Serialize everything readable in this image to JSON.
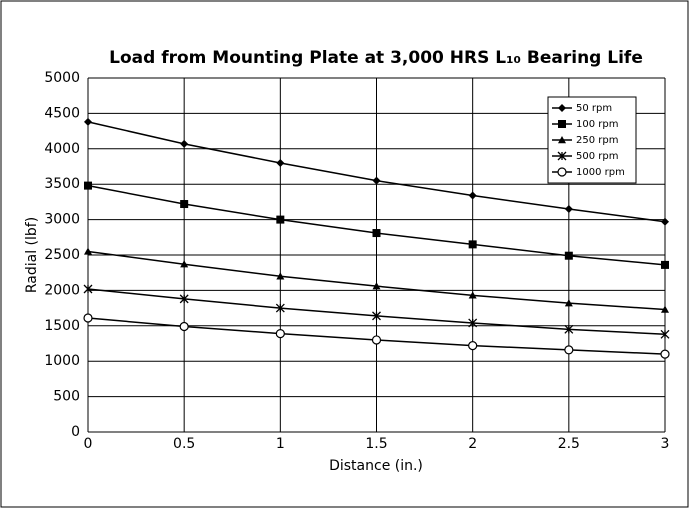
{
  "chart_data": {
    "type": "line",
    "title": "Load from Mounting Plate at 3,000 HRS L₁₀ Bearing Life",
    "x_label": "Distance (in.)",
    "y_label": "Radial (lbf)",
    "x": [
      0,
      0.5,
      1,
      1.5,
      2,
      2.5,
      3
    ],
    "xlim": [
      0,
      3
    ],
    "xticks": [
      0,
      0.5,
      1,
      1.5,
      2,
      2.5,
      3
    ],
    "ylim": [
      0,
      5000
    ],
    "yticks": [
      0,
      500,
      1000,
      1500,
      2000,
      2500,
      3000,
      3500,
      4000,
      4500,
      5000
    ],
    "grid": true,
    "legend": "upper right",
    "series": [
      {
        "name": "50 rpm",
        "color": "#000000",
        "marker": "diamond",
        "values": [
          4380,
          4070,
          3800,
          3550,
          3340,
          3150,
          2970
        ]
      },
      {
        "name": "100 rpm",
        "color": "#000000",
        "marker": "square",
        "values": [
          3480,
          3220,
          3000,
          2810,
          2650,
          2490,
          2360
        ]
      },
      {
        "name": "250 rpm",
        "color": "#000000",
        "marker": "triangle",
        "values": [
          2550,
          2370,
          2200,
          2060,
          1930,
          1820,
          1730
        ]
      },
      {
        "name": "500 rpm",
        "color": "#000000",
        "marker": "star",
        "values": [
          2020,
          1880,
          1750,
          1640,
          1540,
          1450,
          1380
        ]
      },
      {
        "name": "1000 rpm",
        "color": "#000000",
        "marker": "circle",
        "values": [
          1610,
          1490,
          1390,
          1300,
          1220,
          1160,
          1100
        ]
      }
    ]
  }
}
